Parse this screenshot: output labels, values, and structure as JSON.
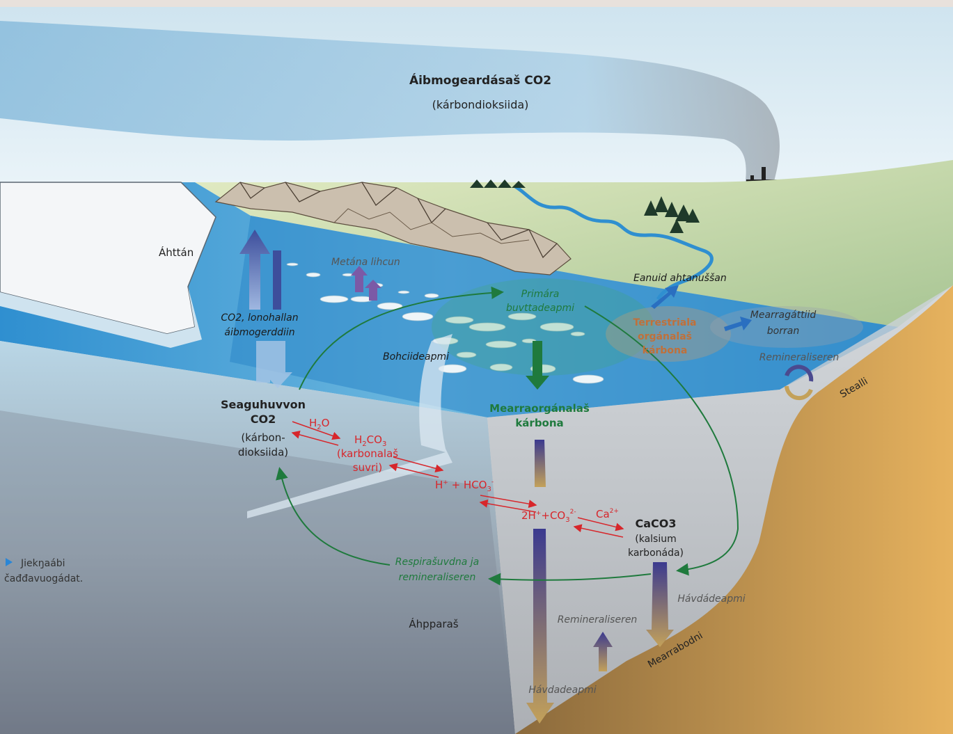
{
  "atmosphere": {
    "title": "Áibmogeardásaš CO2",
    "subtitle": "(kárbondioksiida)"
  },
  "land": {
    "glacier": "Áhttán",
    "coast": "Stealli",
    "river_runoff": "Eanuid ahtanuššan",
    "coastal_erosion_1": "Mearragáttiid",
    "coastal_erosion_2": "borran",
    "terrestrial_carbon_1": "Terrestriala",
    "terrestrial_carbon_2": "orgánalaš",
    "terrestrial_carbon_3": "kárbona",
    "remineralisation_shelf": "Remineraliseren"
  },
  "ocean": {
    "methane": "Metána lihcun",
    "co2_exchange_1": "CO2, lonohallan",
    "co2_exchange_2": "áibmogerddiin",
    "primary_prod_1": "Primára",
    "primary_prod_2": "buvttadeapmi",
    "ice_melt": "Bohciideapmi",
    "marine_carbon_1": "Mearraorgánalaš",
    "marine_carbon_2": "kárbona",
    "dissolved_co2_1": "Seaguhuvvon",
    "dissolved_co2_2": "CO2",
    "dissolved_co2_3": "(kárbon-",
    "dissolved_co2_4": "dioksiida)",
    "respiration_1": "Respirašuvdna ja",
    "respiration_2": "remineraliseren",
    "caco3": "CaCO3",
    "caco3_name_1": "(kalsium",
    "caco3_name_2": "karbonáda)",
    "deposition_right": "Hávdádeapmi",
    "remineralisation_deep": "Remineraliseren",
    "seafloor": "Mearrabodni",
    "deposition_bottom": "Hávdadeapmi",
    "intermediate": "Áhpparaš"
  },
  "chemistry": {
    "h2o": "H",
    "h2o_sub": "2",
    "h2o_end": "O",
    "h2co3": "H",
    "h2co3_sub1": "2",
    "h2co3_mid": "CO",
    "h2co3_sub2": "3",
    "acid_1": "(karbonalaš",
    "acid_2": "suvri)",
    "bicarbonate_a": "H",
    "bicarbonate_sup1": "+",
    "bicarbonate_b": " + HCO",
    "bicarbonate_sub": "3",
    "bicarbonate_sup2": "-",
    "carbonate_a": "2H",
    "carbonate_sup1": "+",
    "carbonate_b": "+CO",
    "carbonate_sub": "3",
    "carbonate_sup2": "2-",
    "calcium_a": "Ca",
    "calcium_sup": "2+"
  },
  "legend": {
    "line1": "Jiekŋaábi",
    "line2": "čađđavuogádat."
  },
  "colors": {
    "reaction": "#d7262b",
    "cycle": "#1f7a3d",
    "terrestrial": "#c0703a",
    "marine": "#1f7a3d",
    "sea": "#3a9ed6"
  }
}
